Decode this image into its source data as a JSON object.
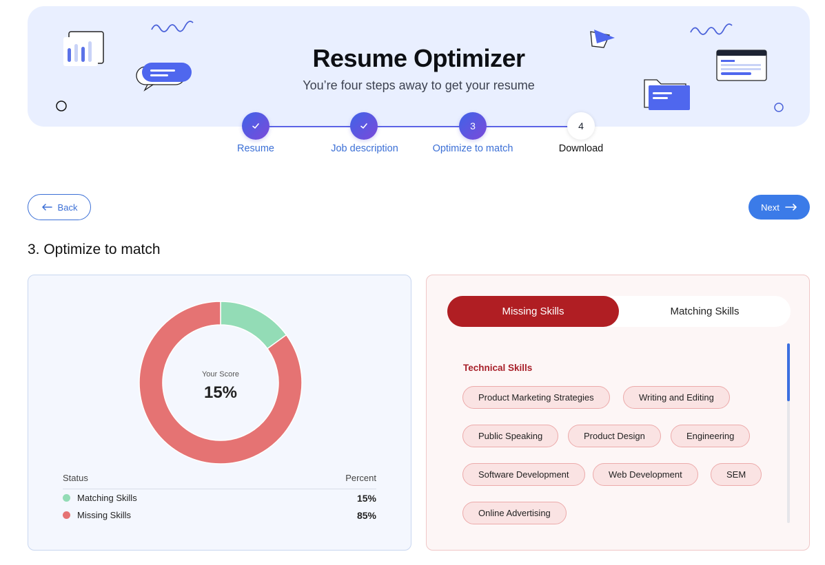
{
  "hero": {
    "title": "Resume Optimizer",
    "subtitle": "You’re four steps away to get your resume"
  },
  "stepper": {
    "steps": [
      {
        "label": "Resume",
        "status": "done",
        "marker": "check-icon"
      },
      {
        "label": "Job description",
        "status": "done",
        "marker": "check-icon"
      },
      {
        "label": "Optimize to match",
        "status": "active",
        "number": "3"
      },
      {
        "label": "Download",
        "status": "pending",
        "number": "4"
      }
    ]
  },
  "nav": {
    "back_label": "Back",
    "next_label": "Next"
  },
  "section": {
    "title": "3. Optimize to match"
  },
  "score": {
    "center_label": "Your Score",
    "center_value": "15%",
    "legend_status_header": "Status",
    "legend_percent_header": "Percent",
    "rows": [
      {
        "name": "Matching Skills",
        "percent": "15%",
        "color": "#93dcb6"
      },
      {
        "name": "Missing Skills",
        "percent": "85%",
        "color": "#e57373"
      }
    ]
  },
  "chart_data": {
    "type": "pie",
    "title": "Your Score",
    "categories": [
      "Matching Skills",
      "Missing Skills"
    ],
    "values": [
      15,
      85
    ],
    "colors": [
      "#93dcb6",
      "#e57373"
    ]
  },
  "skills": {
    "tabs": [
      {
        "label": "Missing Skills",
        "active": true
      },
      {
        "label": "Matching Skills",
        "active": false
      }
    ],
    "group_title": "Technical Skills",
    "chips": [
      "Product Marketing Strategies",
      "Writing and Editing",
      "Public Speaking",
      "Product Design",
      "Engineering",
      "Software Development",
      "Web Development",
      "SEM",
      "Online Advertising"
    ]
  },
  "colors": {
    "accent": "#3b6fd6",
    "primary_button": "#3b7be8",
    "missing_tab": "#b01e23",
    "matching": "#93dcb6",
    "missing": "#e57373"
  }
}
